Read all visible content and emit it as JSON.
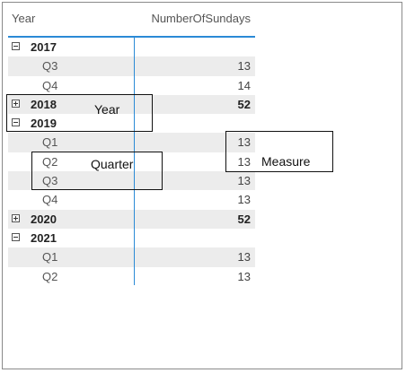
{
  "matrix": {
    "headers": {
      "year": "Year",
      "measure": "NumberOfSundays"
    },
    "rows": [
      {
        "label": "2017",
        "value": "",
        "level": 0,
        "expanded": true,
        "shaded": false
      },
      {
        "label": "Q3",
        "value": "13",
        "level": 1,
        "shaded": true
      },
      {
        "label": "Q4",
        "value": "14",
        "level": 1,
        "shaded": false
      },
      {
        "label": "2018",
        "value": "52",
        "level": 0,
        "expanded": false,
        "shaded": true
      },
      {
        "label": "2019",
        "value": "",
        "level": 0,
        "expanded": true,
        "shaded": false
      },
      {
        "label": "Q1",
        "value": "13",
        "level": 1,
        "shaded": true
      },
      {
        "label": "Q2",
        "value": "13",
        "level": 1,
        "shaded": false
      },
      {
        "label": "Q3",
        "value": "13",
        "level": 1,
        "shaded": true
      },
      {
        "label": "Q4",
        "value": "13",
        "level": 1,
        "shaded": false
      },
      {
        "label": "2020",
        "value": "52",
        "level": 0,
        "expanded": false,
        "shaded": true
      },
      {
        "label": "2021",
        "value": "",
        "level": 0,
        "expanded": true,
        "shaded": false
      },
      {
        "label": "Q1",
        "value": "13",
        "level": 1,
        "shaded": true
      },
      {
        "label": "Q2",
        "value": "13",
        "level": 1,
        "shaded": false
      }
    ]
  },
  "annotations": {
    "year": "Year",
    "quarter": "Quarter",
    "measure": "Measure"
  },
  "colors": {
    "accent": "#2b8ad6",
    "row_shade": "#ececec"
  },
  "icons": {
    "expanded": "minus-box-icon",
    "collapsed": "plus-box-icon"
  }
}
